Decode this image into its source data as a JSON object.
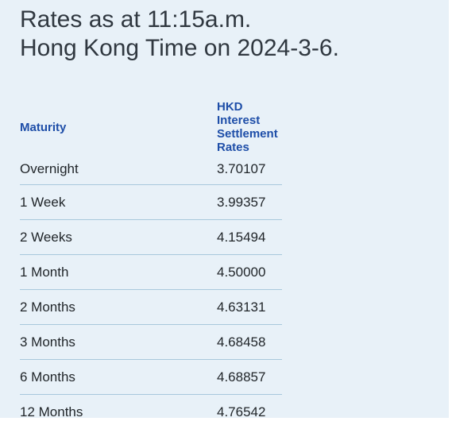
{
  "heading": {
    "line1": "Rates as at 11:15a.m.",
    "line2": "Hong Kong Time on 2024-3-6."
  },
  "table": {
    "headers": [
      "Maturity",
      "HKD Interest Settlement Rates"
    ],
    "rows": [
      {
        "maturity": "Overnight",
        "rate": "3.70107"
      },
      {
        "maturity": "1 Week",
        "rate": "3.99357"
      },
      {
        "maturity": "2 Weeks",
        "rate": "4.15494"
      },
      {
        "maturity": "1 Month",
        "rate": "4.50000"
      },
      {
        "maturity": "2 Months",
        "rate": "4.63131"
      },
      {
        "maturity": "3 Months",
        "rate": "4.68458"
      },
      {
        "maturity": "6 Months",
        "rate": "4.68857"
      },
      {
        "maturity": "12 Months",
        "rate": "4.76542"
      }
    ]
  },
  "colors": {
    "background": "#e8f1f8",
    "header_text": "#1e4ea8",
    "row_divider": "#a8c8dc"
  }
}
